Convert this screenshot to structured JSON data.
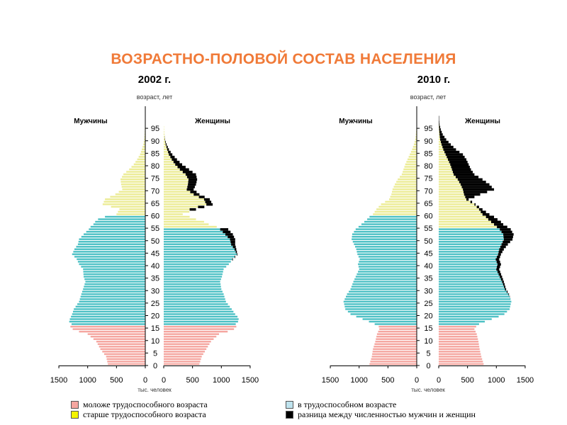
{
  "title": "ВОЗРАСТНО-ПОЛОВОЙ СОСТАВ НАСЕЛЕНИЯ",
  "colors": {
    "young": "#f5a6a0",
    "working": "#4dc1c5",
    "old": "#ecec96",
    "diff": "#000000",
    "title": "#f07a38"
  },
  "legend": {
    "young": "моложе трудоспособного возраста",
    "working": "в трудоспособном возрасте",
    "old": "старше трудоспособного возраста",
    "diff": "разница между численностью мужчин и женщин"
  },
  "chart_data": [
    {
      "type": "population-pyramid",
      "year_label": "2002 г.",
      "age_axis_label": "возраст, лет",
      "x_label": "тыс. человек",
      "male_label": "Мужчины",
      "female_label": "Женщины",
      "age_ticks": [
        0,
        5,
        10,
        15,
        20,
        25,
        30,
        35,
        40,
        45,
        50,
        55,
        60,
        65,
        70,
        75,
        80,
        85,
        90,
        95
      ],
      "x_ticks": [
        0,
        500,
        1000,
        1500
      ],
      "xlim": [
        0,
        1500
      ],
      "age_groups": {
        "young_max": 15,
        "female_working_max": 54,
        "male_working_max": 59
      },
      "age_keys": [
        0,
        3,
        6,
        9,
        12,
        13,
        14,
        15,
        16,
        17,
        18,
        19,
        20,
        22,
        25,
        28,
        30,
        33,
        35,
        38,
        40,
        42,
        44,
        46,
        48,
        50,
        52,
        54,
        55,
        56,
        57,
        58,
        59,
        60,
        62,
        64,
        66,
        68,
        70,
        72,
        74,
        76,
        78,
        80,
        82,
        84,
        86,
        88,
        90,
        92,
        94,
        96,
        98
      ],
      "male": [
        650,
        680,
        780,
        850,
        1000,
        1150,
        1260,
        1300,
        1280,
        1320,
        1310,
        1290,
        1270,
        1240,
        1150,
        1110,
        1080,
        1040,
        1070,
        1080,
        1150,
        1190,
        1270,
        1230,
        1170,
        1150,
        1070,
        980,
        950,
        900,
        870,
        820,
        700,
        500,
        450,
        740,
        700,
        520,
        400,
        420,
        430,
        380,
        280,
        200,
        140,
        90,
        60,
        35,
        20,
        12,
        8,
        5,
        3
      ],
      "female": [
        620,
        660,
        740,
        820,
        960,
        1110,
        1220,
        1260,
        1250,
        1290,
        1300,
        1280,
        1240,
        1180,
        1080,
        1040,
        1000,
        980,
        1010,
        1040,
        1130,
        1200,
        1280,
        1260,
        1240,
        1240,
        1200,
        1120,
        920,
        780,
        700,
        560,
        450,
        330,
        560,
        850,
        800,
        620,
        520,
        560,
        580,
        560,
        440,
        320,
        230,
        150,
        90,
        50,
        24,
        12,
        6,
        3,
        1
      ],
      "note": "male = men per age (thousands); female = women per age (thousands)"
    },
    {
      "type": "population-pyramid",
      "year_label": "2010 г.",
      "age_axis_label": "возраст, лет",
      "x_label": "тыс. человек",
      "male_label": "Мужчины",
      "female_label": "Женщины",
      "age_ticks": [
        0,
        5,
        10,
        15,
        20,
        25,
        30,
        35,
        40,
        45,
        50,
        55,
        60,
        65,
        70,
        75,
        80,
        85,
        90,
        95
      ],
      "x_ticks": [
        0,
        500,
        1000,
        1500
      ],
      "xlim": [
        0,
        1500
      ],
      "age_groups": {
        "young_max": 15,
        "female_working_max": 54,
        "male_working_max": 59
      },
      "age_keys": [
        0,
        3,
        6,
        9,
        12,
        13,
        14,
        15,
        16,
        17,
        18,
        19,
        20,
        22,
        25,
        28,
        30,
        33,
        35,
        38,
        40,
        42,
        44,
        46,
        48,
        50,
        52,
        54,
        55,
        56,
        57,
        58,
        59,
        60,
        62,
        64,
        66,
        68,
        70,
        72,
        74,
        76,
        78,
        80,
        82,
        84,
        86,
        88,
        90,
        92,
        94,
        96,
        98
      ],
      "male": [
        820,
        780,
        760,
        720,
        690,
        670,
        650,
        660,
        730,
        830,
        940,
        1050,
        1150,
        1240,
        1270,
        1210,
        1150,
        1100,
        1060,
        1000,
        1020,
        990,
        1030,
        1050,
        1090,
        1130,
        1120,
        1060,
        1010,
        960,
        910,
        860,
        820,
        760,
        700,
        620,
        480,
        440,
        420,
        380,
        330,
        260,
        230,
        200,
        160,
        120,
        80,
        50,
        25,
        15,
        8,
        4,
        2
      ],
      "female": [
        780,
        740,
        710,
        690,
        660,
        640,
        620,
        650,
        700,
        800,
        920,
        1040,
        1140,
        1230,
        1260,
        1220,
        1170,
        1130,
        1100,
        1050,
        1080,
        1050,
        1080,
        1130,
        1200,
        1280,
        1300,
        1250,
        1190,
        1120,
        1080,
        1020,
        960,
        880,
        760,
        640,
        520,
        720,
        960,
        880,
        760,
        620,
        560,
        520,
        480,
        420,
        300,
        210,
        130,
        70,
        35,
        15,
        8
      ]
    }
  ]
}
